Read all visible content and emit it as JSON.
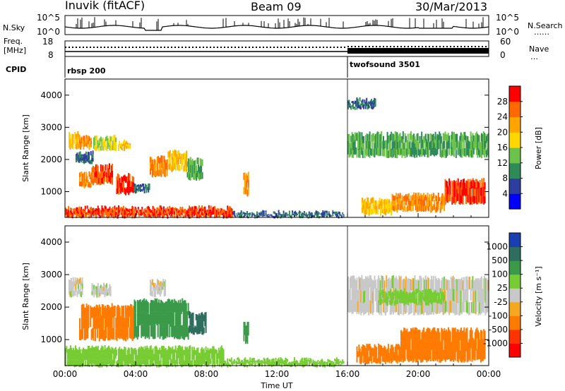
{
  "header": {
    "station": "Inuvik (fitACF)",
    "beam": "Beam 09",
    "date": "30/Mar/2013"
  },
  "status_panels": {
    "nsky_label": "N.Sky",
    "nsky_ticks": [
      "10^5",
      "10^0"
    ],
    "nsearch_label": "N.Search",
    "nsearch_ticks": [
      "10^5",
      "10^0"
    ],
    "freq_label_1": "Freq.",
    "freq_label_2": "[MHz]",
    "freq_ticks": [
      "18",
      "8"
    ],
    "nave_label": "Nave",
    "nave_ticks": [
      "60",
      "0"
    ],
    "cpid_label": "CPID",
    "cpid_segments": [
      {
        "name": "rbsp 200",
        "start_hour": 0
      },
      {
        "name": "twofsound 3501",
        "start_hour": 16
      }
    ]
  },
  "chart_data": [
    {
      "type": "heatmap",
      "name": "power",
      "ylabel": "Slant Range [km]",
      "xlabel": "",
      "ylim": [
        200,
        4500
      ],
      "xlim": [
        0,
        24
      ],
      "y_ticks": [
        "1000",
        "2000",
        "3000",
        "4000"
      ],
      "colorbar_label": "Power [dB]",
      "colorbar_ticks": [
        "4",
        "8",
        "12",
        "16",
        "20",
        "24",
        "28"
      ],
      "colorbar_colors": [
        "#0000ff",
        "#2e3e9e",
        "#2e8b57",
        "#6cc24a",
        "#ffd700",
        "#ffa500",
        "#ff6a00",
        "#ff0000"
      ],
      "echo_regions": [
        {
          "t": [
            0.2,
            0.8
          ],
          "r": [
            2350,
            2850
          ],
          "v": 20
        },
        {
          "t": [
            0.8,
            1.5
          ],
          "r": [
            2350,
            2700
          ],
          "v": 24
        },
        {
          "t": [
            1.6,
            2.9
          ],
          "r": [
            2300,
            2700
          ],
          "v": 16
        },
        {
          "t": [
            3.0,
            3.7
          ],
          "r": [
            2300,
            2550
          ],
          "v": 20
        },
        {
          "t": [
            0.6,
            1.6
          ],
          "r": [
            1900,
            2200
          ],
          "v": 8
        },
        {
          "t": [
            0.8,
            1.5
          ],
          "r": [
            1150,
            1550
          ],
          "v": 24
        },
        {
          "t": [
            1.5,
            2.7
          ],
          "r": [
            1250,
            1800
          ],
          "v": 28
        },
        {
          "t": [
            2.9,
            3.9
          ],
          "r": [
            950,
            1500
          ],
          "v": 28
        },
        {
          "t": [
            4.8,
            5.8
          ],
          "r": [
            1500,
            2050
          ],
          "v": 24
        },
        {
          "t": [
            5.8,
            6.9
          ],
          "r": [
            1650,
            2250
          ],
          "v": 20
        },
        {
          "t": [
            6.9,
            7.8
          ],
          "r": [
            1400,
            2000
          ],
          "v": 12
        },
        {
          "t": [
            3.9,
            4.8
          ],
          "r": [
            1000,
            1200
          ],
          "v": 8
        },
        {
          "t": [
            10.1,
            10.4
          ],
          "r": [
            900,
            1550
          ],
          "v": 24
        },
        {
          "t": [
            0.0,
            9.5
          ],
          "r": [
            220,
            500
          ],
          "v": 28
        },
        {
          "t": [
            9.5,
            15.8
          ],
          "r": [
            220,
            350
          ],
          "v": 8
        },
        {
          "t": [
            16.8,
            18.5
          ],
          "r": [
            300,
            750
          ],
          "v": 20
        },
        {
          "t": [
            18.5,
            21.5
          ],
          "r": [
            400,
            900
          ],
          "v": 24
        },
        {
          "t": [
            21.5,
            23.8
          ],
          "r": [
            650,
            1350
          ],
          "v": 28
        },
        {
          "t": [
            16.0,
            24.0
          ],
          "r": [
            2100,
            2800
          ],
          "v": 12
        },
        {
          "t": [
            16.0,
            17.6
          ],
          "r": [
            3600,
            3850
          ],
          "v": 8
        }
      ]
    },
    {
      "type": "heatmap",
      "name": "velocity",
      "ylabel": "Slant Range [km]",
      "xlabel": "Time UT",
      "ylim": [
        200,
        4500
      ],
      "xlim": [
        0,
        24
      ],
      "x_ticks": [
        "00:00",
        "04:00",
        "08:00",
        "12:00",
        "16:00",
        "20:00",
        "00:00"
      ],
      "y_ticks": [
        "1000",
        "2000",
        "3000",
        "4000"
      ],
      "colorbar_label": "Velocity [m s⁻¹]",
      "colorbar_ticks": [
        "1000",
        "500",
        "100",
        "25",
        "-25",
        "-100",
        "-500",
        "-1000"
      ],
      "colorbar_colors": [
        "#1a3fb0",
        "#2e6e5e",
        "#3a9a4a",
        "#77cc33",
        "#c8c8c8",
        "#f5a623",
        "#ff7a00",
        "#ff3300",
        "#ff0000"
      ],
      "echo_regions": [
        {
          "t": [
            0.2,
            1.0
          ],
          "r": [
            2350,
            2850
          ],
          "v": 0
        },
        {
          "t": [
            1.5,
            2.6
          ],
          "r": [
            2350,
            2700
          ],
          "v": 0
        },
        {
          "t": [
            4.8,
            5.7
          ],
          "r": [
            2350,
            2800
          ],
          "v": 0
        },
        {
          "t": [
            0.8,
            3.9
          ],
          "r": [
            1000,
            2050
          ],
          "v": -300
        },
        {
          "t": [
            3.9,
            7.0
          ],
          "r": [
            1050,
            2200
          ],
          "v": 400
        },
        {
          "t": [
            7.0,
            8.0
          ],
          "r": [
            1200,
            1800
          ],
          "v": 600
        },
        {
          "t": [
            10.1,
            10.4
          ],
          "r": [
            900,
            1500
          ],
          "v": 400
        },
        {
          "t": [
            0.0,
            9.0
          ],
          "r": [
            200,
            750
          ],
          "v": 60
        },
        {
          "t": [
            9.0,
            15.8
          ],
          "r": [
            200,
            380
          ],
          "v": 60
        },
        {
          "t": [
            16.5,
            19.0
          ],
          "r": [
            300,
            800
          ],
          "v": -250
        },
        {
          "t": [
            19.0,
            23.8
          ],
          "r": [
            350,
            1300
          ],
          "v": -300
        },
        {
          "t": [
            16.0,
            24.0
          ],
          "r": [
            1800,
            2900
          ],
          "v": 0
        },
        {
          "t": [
            17.8,
            21.5
          ],
          "r": [
            2100,
            2500
          ],
          "v": 60
        }
      ]
    }
  ]
}
